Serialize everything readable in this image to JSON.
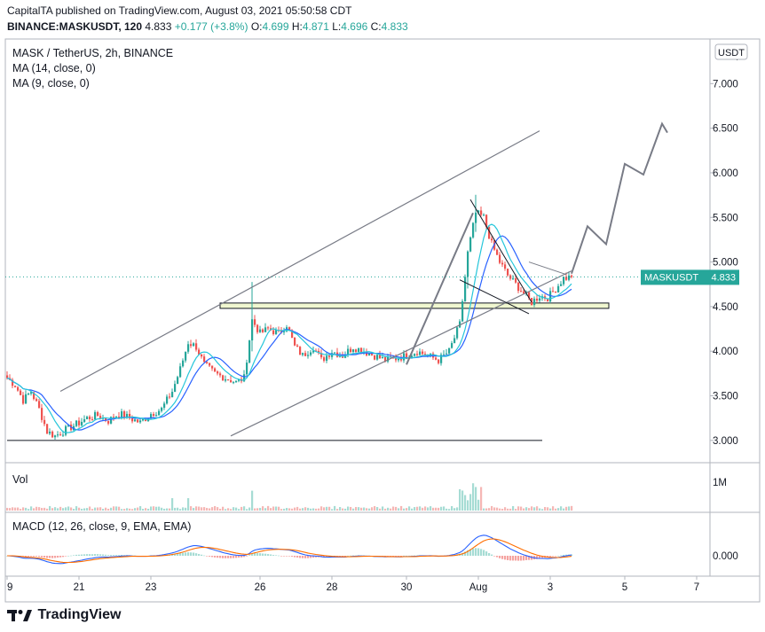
{
  "header": {
    "line1_prefix": "CapitalTA published on TradingView.com, August 03, 2021 05:50:58 CDT",
    "symbol": "BINANCE:MASKUSDT, 120",
    "last": "4.833",
    "change": "+0.177 (+3.8%)",
    "o_label": "O:",
    "o": "4.699",
    "h_label": "H:",
    "h": "4.871",
    "l_label": "L:",
    "l": "4.696",
    "c_label": "C:",
    "c": "4.833"
  },
  "legend": {
    "title": "MASK / TetherUS, 2h, BINANCE",
    "ma14": "MA (14, close, 0)",
    "ma9": "MA (9, close, 0)",
    "vol": "Vol",
    "macd": "MACD (12, 26, close, 9, EMA, EMA)"
  },
  "currency_badge": "USDT",
  "price_tag": {
    "symbol": "MASKUSDT",
    "value": "4.833",
    "color": "#26a69a"
  },
  "footer": {
    "brand": "TradingView"
  },
  "colors": {
    "up": "#26a69a",
    "down": "#ef5350",
    "ma14": "#2962ff",
    "ma9": "#26c6da",
    "signal": "#ff6d00",
    "drawing": "#787b86",
    "zone": "#f0f7d0"
  },
  "chart_data": {
    "type": "candlestick",
    "price_axis": {
      "ticks": [
        "7.000",
        "6.500",
        "6.000",
        "5.500",
        "5.000",
        "4.500",
        "4.000",
        "3.500",
        "3.000"
      ],
      "top_partial_label": "7",
      "range": [
        2.75,
        7.5
      ]
    },
    "time_axis": {
      "ticks": [
        "9",
        "21",
        "23",
        "26",
        "28",
        "30",
        "Aug",
        "3",
        "5",
        "7"
      ]
    },
    "volume_axis": {
      "ticks": [
        "1M"
      ]
    },
    "macd_axis": {
      "ticks": [
        "0.000"
      ]
    },
    "last_price": 4.833,
    "anchors": [
      [
        0,
        3.7
      ],
      [
        3,
        3.62
      ],
      [
        6,
        3.45
      ],
      [
        9,
        3.55
      ],
      [
        12,
        3.35
      ],
      [
        15,
        3.1
      ],
      [
        18,
        3.05
      ],
      [
        22,
        3.12
      ],
      [
        26,
        3.18
      ],
      [
        30,
        3.25
      ],
      [
        34,
        3.28
      ],
      [
        38,
        3.22
      ],
      [
        42,
        3.3
      ],
      [
        46,
        3.25
      ],
      [
        50,
        3.2
      ],
      [
        54,
        3.3
      ],
      [
        58,
        3.35
      ],
      [
        62,
        3.55
      ],
      [
        65,
        3.8
      ],
      [
        68,
        4.1
      ],
      [
        71,
        4.05
      ],
      [
        74,
        3.85
      ],
      [
        78,
        3.75
      ],
      [
        82,
        3.7
      ],
      [
        86,
        3.65
      ],
      [
        89,
        3.7
      ],
      [
        92,
        4.35
      ],
      [
        95,
        4.2
      ],
      [
        98,
        4.25
      ],
      [
        102,
        4.2
      ],
      [
        105,
        4.3
      ],
      [
        108,
        4.05
      ],
      [
        111,
        3.95
      ],
      [
        115,
        4.05
      ],
      [
        118,
        3.9
      ],
      [
        122,
        4.0
      ],
      [
        126,
        3.95
      ],
      [
        130,
        4.05
      ],
      [
        134,
        4.0
      ],
      [
        138,
        3.95
      ],
      [
        142,
        3.9
      ],
      [
        146,
        3.92
      ],
      [
        150,
        3.95
      ],
      [
        154,
        4.0
      ],
      [
        158,
        3.95
      ],
      [
        162,
        3.9
      ],
      [
        166,
        4.0
      ],
      [
        170,
        4.3
      ],
      [
        173,
        5.1
      ],
      [
        176,
        5.55
      ],
      [
        179,
        5.5
      ],
      [
        182,
        5.2
      ],
      [
        185,
        5.0
      ],
      [
        188,
        4.85
      ],
      [
        191,
        4.75
      ],
      [
        194,
        4.65
      ],
      [
        197,
        4.55
      ],
      [
        200,
        4.62
      ],
      [
        203,
        4.6
      ],
      [
        206,
        4.7
      ],
      [
        209,
        4.82
      ],
      [
        212,
        4.83
      ]
    ],
    "drawings": {
      "channel_upper": [
        [
          3.55,
          20
        ],
        [
          6.47,
          200
        ]
      ],
      "channel_lower": [
        [
          3.05,
          84
        ],
        [
          4.9,
          212
        ]
      ],
      "support_zone": [
        4.48,
        4.54
      ],
      "base_line": 3.0,
      "projection": [
        [
          4.87,
          212
        ],
        [
          5.4,
          218
        ],
        [
          5.2,
          225
        ],
        [
          6.1,
          232
        ],
        [
          5.98,
          239
        ],
        [
          6.55,
          246
        ],
        [
          6.45,
          248
        ]
      ],
      "rally_arrow": [
        [
          3.85,
          150
        ],
        [
          5.55,
          175
        ]
      ]
    }
  }
}
